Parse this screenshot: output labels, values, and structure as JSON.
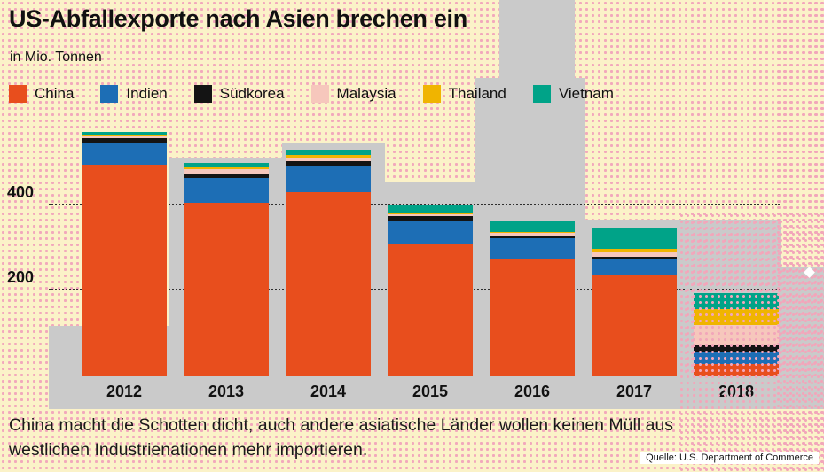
{
  "title": "US-Abfallexporte nach Asien brechen ein",
  "subtitle": "in Mio. Tonnen",
  "caption_line1": "China macht die Schotten dicht, auch andere asiatische Länder wollen keinen Müll aus",
  "caption_line2": "westlichen Industrienationen mehr importieren.",
  "source": "Quelle: U.S. Department of Commerce",
  "style": {
    "background": "#fbf2c8",
    "dot_pattern": "#f2a8bc",
    "skyline_gray": "#cacaca",
    "text": "#111111"
  },
  "chart_data": {
    "type": "bar",
    "stacked": true,
    "title": "US-Abfallexporte nach Asien brechen ein",
    "ylabel": "in Mio. Tonnen",
    "categories": [
      "2012",
      "2013",
      "2014",
      "2015",
      "2016",
      "2017",
      "2018"
    ],
    "series": [
      {
        "name": "China",
        "color": "#e84e1d",
        "values": [
          495,
          405,
          430,
          310,
          275,
          235,
          30
        ]
      },
      {
        "name": "Indien",
        "color": "#1d6eb5",
        "values": [
          52,
          58,
          60,
          55,
          48,
          40,
          28
        ]
      },
      {
        "name": "Südkorea",
        "color": "#141414",
        "values": [
          9,
          10,
          12,
          10,
          7,
          5,
          14
        ]
      },
      {
        "name": "Malaysia",
        "color": "#f6c7bc",
        "values": [
          4,
          12,
          9,
          4,
          5,
          9,
          48
        ]
      },
      {
        "name": "Thailand",
        "color": "#f0b400",
        "values": [
          2,
          3,
          6,
          3,
          3,
          9,
          38
        ]
      },
      {
        "name": "Vietnam",
        "color": "#00a388",
        "values": [
          10,
          10,
          12,
          18,
          25,
          50,
          36
        ]
      }
    ],
    "ylim": [
      0,
      600
    ],
    "yticks": [
      200,
      400
    ],
    "grid": "dotted-horizontal",
    "legend_position": "top"
  }
}
